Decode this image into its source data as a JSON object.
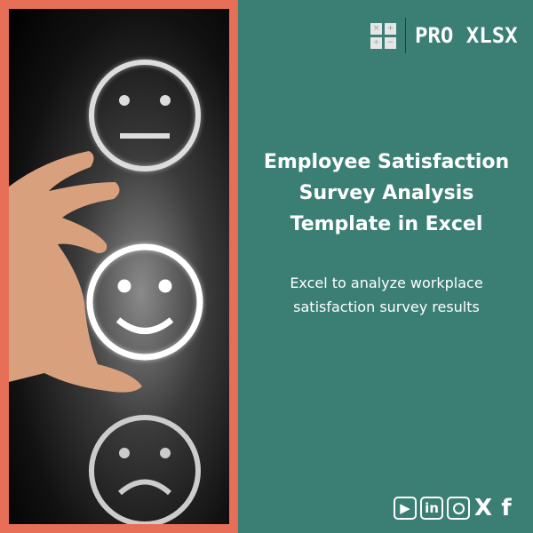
{
  "brand": {
    "name": "PRO XLSX",
    "icon_symbols": [
      "×",
      "+",
      "÷",
      "−"
    ]
  },
  "title_lines": [
    "Employee Satisfaction",
    "Survey Analysis",
    "Template in Excel"
  ],
  "subtitle_lines": [
    "Excel to analyze workplace",
    "satisfaction survey results"
  ],
  "social": [
    "youtube-icon",
    "linkedin-icon",
    "instagram-icon",
    "x-icon",
    "facebook-icon"
  ],
  "colors": {
    "background": "#3b7f74",
    "border": "#e76f57"
  }
}
